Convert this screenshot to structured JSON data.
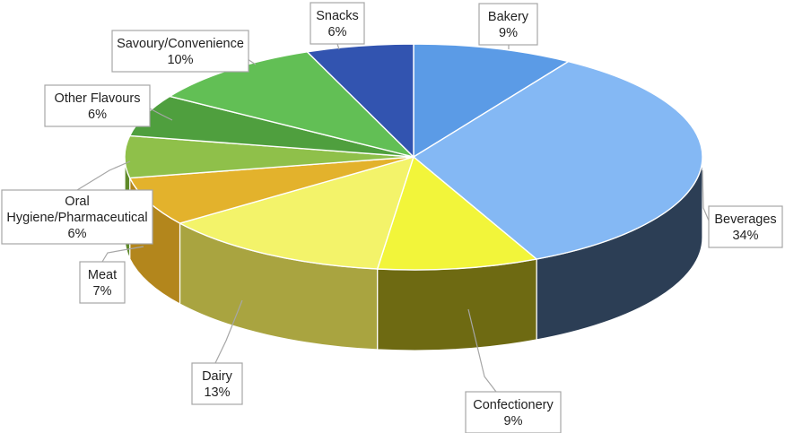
{
  "chart_data": {
    "type": "pie",
    "title": "",
    "slices": [
      {
        "label": "Bakery",
        "value": 9,
        "pct_label": "9%",
        "color": "#5b9be6",
        "side_color": "#2f5e96"
      },
      {
        "label": "Beverages",
        "value": 34,
        "pct_label": "34%",
        "color": "#84b8f4",
        "side_color": "#2c3e55"
      },
      {
        "label": "Confectionery",
        "value": 9,
        "pct_label": "9%",
        "color": "#f2f53a",
        "side_color": "#6e6a12"
      },
      {
        "label": "Dairy",
        "value": 13,
        "pct_label": "13%",
        "color": "#f3f36a",
        "side_color": "#a9a440"
      },
      {
        "label": "Meat",
        "value": 7,
        "pct_label": "7%",
        "color": "#e3b22c",
        "side_color": "#b3861c"
      },
      {
        "label": "Oral Hygiene/Pharmaceutical",
        "value": 6,
        "pct_label": "6%",
        "color": "#8fc04a",
        "side_color": "#5f8a2a"
      },
      {
        "label": "Other Flavours",
        "value": 6,
        "pct_label": "6%",
        "color": "#4f9f3e",
        "side_color": "#2f6a25"
      },
      {
        "label": "Savoury/Convenience",
        "value": 10,
        "pct_label": "10%",
        "color": "#62bf55",
        "side_color": "#3c8a32"
      },
      {
        "label": "Snacks",
        "value": 6,
        "pct_label": "6%",
        "color": "#3254b0",
        "side_color": "#1f3575"
      }
    ],
    "legend": "none",
    "data_labels": "callouts"
  }
}
